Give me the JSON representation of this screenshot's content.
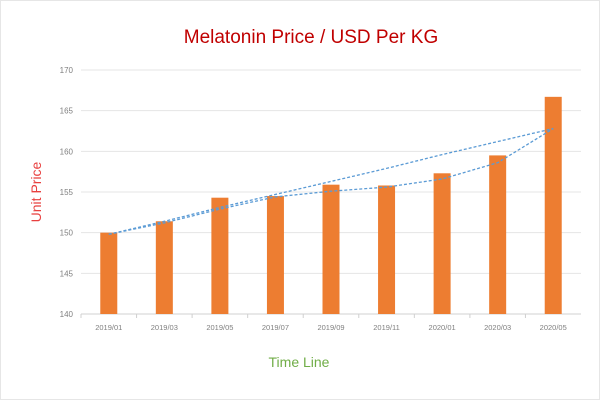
{
  "chart_data": {
    "type": "bar",
    "title": "Melatonin Price / USD Per KG",
    "xlabel": "Time Line",
    "ylabel": "Unit Price",
    "categories": [
      "2019/01",
      "2019/03",
      "2019/05",
      "2019/07",
      "2019/09",
      "2019/11",
      "2020/01",
      "2020/03",
      "2020/05"
    ],
    "values": [
      150.0,
      151.4,
      154.3,
      154.5,
      155.9,
      155.8,
      157.3,
      159.5,
      166.7
    ],
    "trendlines": [
      {
        "type": "linear",
        "values": [
          149.8,
          151.4,
          153.1,
          154.7,
          156.3,
          157.9,
          159.6,
          161.2,
          162.8
        ]
      },
      {
        "type": "polynomial",
        "values": [
          149.8,
          151.2,
          152.9,
          154.4,
          155.1,
          155.6,
          156.6,
          158.6,
          162.8
        ]
      }
    ],
    "ylim": [
      140,
      170
    ],
    "yticks": [
      140,
      145,
      150,
      155,
      160,
      165,
      170
    ],
    "grid": true,
    "legend": "none",
    "colors": {
      "bar": "#ed7d31",
      "trend": "#5b9bd5",
      "title": "#c00000",
      "ylabel": "#e8403f",
      "xlabel": "#70ad47",
      "grid": "#e4e4e4",
      "tick": "#7f7f7f"
    }
  }
}
